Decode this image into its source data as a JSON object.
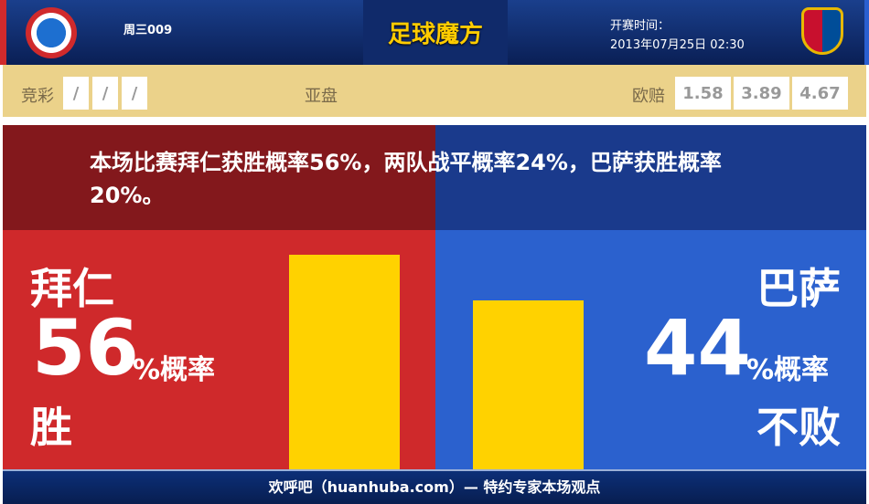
{
  "header": {
    "match_code": "周三009",
    "brand": "足球魔方",
    "kickoff_label": "开赛时间：",
    "kickoff_time": "2013年07月25日 02:30",
    "home_logo": "fc-bayern-logo",
    "away_logo": "fc-barcelona-logo"
  },
  "odds": {
    "jingcai_label": "竞彩",
    "jingcai": [
      "/",
      "/",
      "/"
    ],
    "asian_label": "亚盘",
    "euro_label": "欧赔",
    "euro": [
      "1.58",
      "3.89",
      "4.67"
    ]
  },
  "summary": "本场比赛拜仁获胜概率56%，两队战平概率24%，巴萨获胜概率20%。",
  "home": {
    "name": "拜仁",
    "percent": "56",
    "unit": "%概率",
    "outcome": "胜",
    "bar_value": 56,
    "color": "#cf292b"
  },
  "away": {
    "name": "巴萨",
    "percent": "44",
    "unit": "%概率",
    "outcome": "不败",
    "bar_value": 44,
    "color": "#2b61ce"
  },
  "bar_color": "#ffd200",
  "footer": "欢呼吧（huanhuba.com）— 特约专家本场观点"
}
